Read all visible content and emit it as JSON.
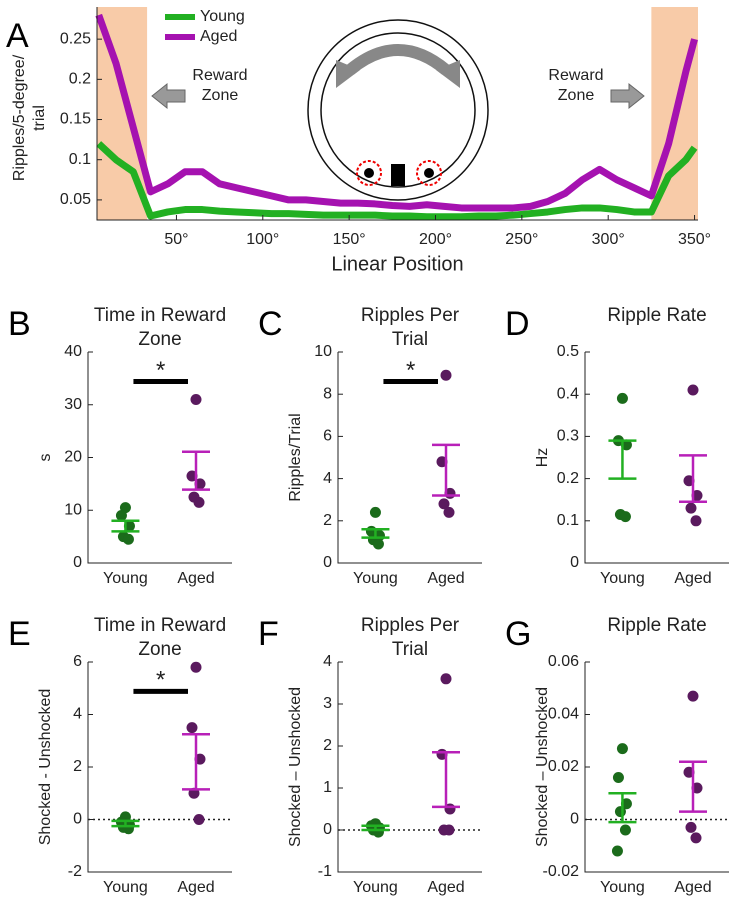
{
  "chart_data": [
    {
      "type": "line",
      "panel": "A",
      "ylabel": [
        "Ripples/5-degree/",
        "trial"
      ],
      "xlabel": "Linear Position",
      "x": [
        5,
        15,
        25,
        35,
        45,
        55,
        65,
        75,
        85,
        95,
        105,
        115,
        125,
        135,
        145,
        155,
        165,
        175,
        185,
        195,
        205,
        215,
        225,
        235,
        245,
        255,
        265,
        275,
        285,
        295,
        305,
        315,
        325,
        335,
        345,
        350
      ],
      "series": [
        {
          "name": "Young",
          "color": "#22b022",
          "values": [
            0.12,
            0.1,
            0.085,
            0.03,
            0.035,
            0.038,
            0.038,
            0.036,
            0.035,
            0.034,
            0.033,
            0.033,
            0.032,
            0.031,
            0.031,
            0.031,
            0.031,
            0.03,
            0.03,
            0.029,
            0.029,
            0.029,
            0.03,
            0.03,
            0.031,
            0.033,
            0.035,
            0.038,
            0.04,
            0.04,
            0.038,
            0.035,
            0.035,
            0.08,
            0.1,
            0.115
          ]
        },
        {
          "name": "Aged",
          "color": "#a512b0",
          "values": [
            0.28,
            0.22,
            0.14,
            0.06,
            0.07,
            0.085,
            0.085,
            0.07,
            0.065,
            0.06,
            0.055,
            0.05,
            0.05,
            0.048,
            0.046,
            0.046,
            0.045,
            0.043,
            0.042,
            0.044,
            0.042,
            0.04,
            0.04,
            0.04,
            0.04,
            0.042,
            0.048,
            0.058,
            0.075,
            0.088,
            0.075,
            0.065,
            0.055,
            0.12,
            0.21,
            0.25
          ]
        }
      ],
      "xlim": [
        4,
        352
      ],
      "ylim": [
        0.025,
        0.29
      ],
      "xticks": [
        {
          "value": 50,
          "label": "50°"
        },
        {
          "value": 100,
          "label": "100°"
        },
        {
          "value": 150,
          "label": "150°"
        },
        {
          "value": 200,
          "label": "200°"
        },
        {
          "value": 250,
          "label": "250°"
        },
        {
          "value": 300,
          "label": "300°"
        },
        {
          "value": 350,
          "label": "350°"
        }
      ],
      "yticks": [
        0.05,
        0.1,
        0.15,
        0.2,
        0.25
      ],
      "shaded_x": [
        [
          4,
          33
        ],
        [
          325,
          352
        ]
      ],
      "shade_color": "#f8cba8",
      "annotations": [
        [
          "Reward",
          "Zone"
        ],
        [
          "Reward",
          "Zone"
        ]
      ]
    },
    {
      "type": "dot",
      "panel": "B",
      "title": [
        "Time in Reward",
        "Zone"
      ],
      "ylabel": "s",
      "categories": [
        "Young",
        "Aged"
      ],
      "ylim": [
        0,
        40
      ],
      "yticks": [
        0,
        10,
        20,
        30,
        40
      ],
      "significance": "*",
      "groups": [
        {
          "color": "#22b022",
          "point_color": "#1b6b1b",
          "points": [
            10.5,
            9,
            7,
            5,
            4.5
          ],
          "mean": 7,
          "sem": 1
        },
        {
          "color": "#b820b8",
          "point_color": "#5a1a5e",
          "points": [
            31,
            16.5,
            15,
            12.5,
            11.5
          ],
          "mean": 17.5,
          "sem": 3.6
        }
      ]
    },
    {
      "type": "dot",
      "panel": "C",
      "title": [
        "Ripples Per",
        "Trial"
      ],
      "ylabel": "Ripples/Trial",
      "categories": [
        "Young",
        "Aged"
      ],
      "ylim": [
        0,
        10
      ],
      "yticks": [
        0,
        2,
        4,
        6,
        8,
        10
      ],
      "significance": "*",
      "groups": [
        {
          "color": "#22b022",
          "point_color": "#1b6b1b",
          "points": [
            2.4,
            1.5,
            1.3,
            1.1,
            0.9
          ],
          "mean": 1.4,
          "sem": 0.2
        },
        {
          "color": "#b820b8",
          "point_color": "#5a1a5e",
          "points": [
            8.9,
            4.8,
            3.3,
            2.8,
            2.4
          ],
          "mean": 4.4,
          "sem": 1.2
        }
      ]
    },
    {
      "type": "dot",
      "panel": "D",
      "title": [
        "Ripple Rate"
      ],
      "ylabel": "Hz",
      "categories": [
        "Young",
        "Aged"
      ],
      "ylim": [
        0,
        0.5
      ],
      "yticks": [
        0,
        0.1,
        0.2,
        0.3,
        0.4,
        0.5
      ],
      "groups": [
        {
          "color": "#22b022",
          "point_color": "#1b6b1b",
          "points": [
            0.39,
            0.29,
            0.28,
            0.115,
            0.11
          ],
          "mean": 0.245,
          "sem": 0.045
        },
        {
          "color": "#b820b8",
          "point_color": "#5a1a5e",
          "points": [
            0.41,
            0.195,
            0.16,
            0.13,
            0.1
          ],
          "mean": 0.2,
          "sem": 0.055
        }
      ]
    },
    {
      "type": "dot",
      "panel": "E",
      "title": [
        "Time in Reward",
        "Zone"
      ],
      "ylabel": "Shocked - Unshocked",
      "categories": [
        "Young",
        "Aged"
      ],
      "ylim": [
        -2,
        6
      ],
      "yticks": [
        -2,
        0,
        2,
        4,
        6
      ],
      "significance": "*",
      "zero_line": true,
      "groups": [
        {
          "color": "#22b022",
          "point_color": "#1b6b1b",
          "points": [
            0.1,
            -0.1,
            -0.2,
            -0.3,
            -0.35
          ],
          "mean": -0.15,
          "sem": 0.1
        },
        {
          "color": "#b820b8",
          "point_color": "#5a1a5e",
          "points": [
            5.8,
            3.5,
            2.3,
            1,
            0
          ],
          "mean": 2.2,
          "sem": 1.05
        }
      ]
    },
    {
      "type": "dot",
      "panel": "F",
      "title": [
        "Ripples Per",
        "Trial"
      ],
      "ylabel": "Shocked – Unshocked",
      "categories": [
        "Young",
        "Aged"
      ],
      "ylim": [
        -1,
        4
      ],
      "yticks": [
        -1,
        0,
        1,
        2,
        3,
        4
      ],
      "zero_line": true,
      "groups": [
        {
          "color": "#22b022",
          "point_color": "#1b6b1b",
          "points": [
            0.15,
            0.1,
            0.05,
            0,
            -0.05
          ],
          "mean": 0.05,
          "sem": 0.05
        },
        {
          "color": "#b820b8",
          "point_color": "#5a1a5e",
          "points": [
            3.6,
            1.8,
            0.5,
            0,
            0
          ],
          "mean": 1.2,
          "sem": 0.65
        }
      ]
    },
    {
      "type": "dot",
      "panel": "G",
      "title": [
        "Ripple Rate"
      ],
      "ylabel": "Shocked – Unshocked",
      "categories": [
        "Young",
        "Aged"
      ],
      "ylim": [
        -0.02,
        0.06
      ],
      "yticks": [
        -0.02,
        0,
        0.02,
        0.04,
        0.06
      ],
      "zero_line": true,
      "groups": [
        {
          "color": "#22b022",
          "point_color": "#1b6b1b",
          "points": [
            0.027,
            0.016,
            0.006,
            0.003,
            -0.004,
            -0.012
          ],
          "mean": 0.0045,
          "sem": 0.0055
        },
        {
          "color": "#b820b8",
          "point_color": "#5a1a5e",
          "points": [
            0.047,
            0.018,
            0.012,
            -0.003,
            -0.007
          ],
          "mean": 0.0125,
          "sem": 0.0095
        }
      ]
    }
  ]
}
